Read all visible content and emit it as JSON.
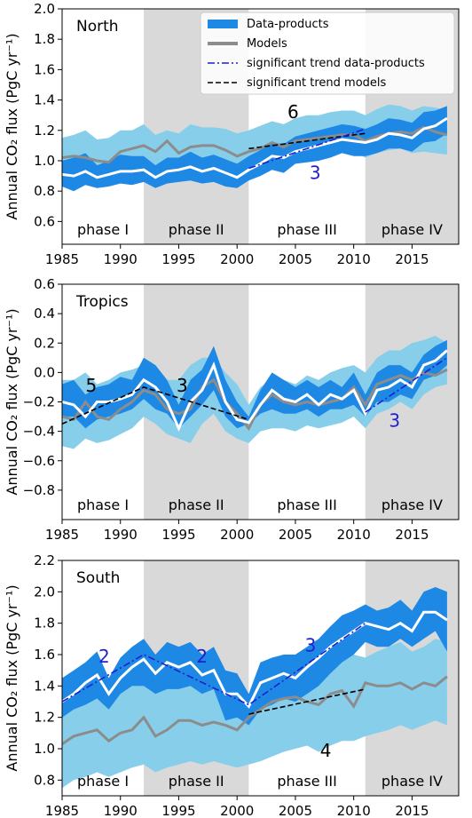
{
  "legend": {
    "items": [
      {
        "label": "Data-products",
        "kind": "band"
      },
      {
        "label": "Models",
        "kind": "grey"
      },
      {
        "label": "significant trend data-products",
        "kind": "dashdot"
      },
      {
        "label": "significant trend models",
        "kind": "dashed"
      }
    ]
  },
  "colors": {
    "band_dark": "#1e88e5",
    "band_light": "#87ceeb",
    "median": "#ffffff",
    "models": "#8c8c8c",
    "trend_data": "#1f1fd0",
    "trend_models": "#000000",
    "phase_shade": "#d9d9d9",
    "annot_blue": "#1f1fd0"
  },
  "chart_data": [
    {
      "type": "line",
      "title": "North",
      "ylabel": "Annual CO₂ flux (PgC yr⁻¹)",
      "xlim": [
        1985,
        2019
      ],
      "ylim": [
        0.45,
        2.0
      ],
      "xticks": [
        1985,
        1990,
        1995,
        2000,
        2005,
        2010,
        2015
      ],
      "yticks": [
        0.6,
        0.8,
        1.0,
        1.2,
        1.4,
        1.6,
        1.8,
        2.0
      ],
      "ytick_labels": [
        "0.6",
        "0.8",
        "1.0",
        "1.2",
        "1.4",
        "1.6",
        "1.8",
        "2.0"
      ],
      "phases": [
        {
          "label": "phase I",
          "start": 1985,
          "end": 1992,
          "shaded": false
        },
        {
          "label": "phase II",
          "start": 1992,
          "end": 2001,
          "shaded": true
        },
        {
          "label": "phase III",
          "start": 2001,
          "end": 2011,
          "shaded": false
        },
        {
          "label": "phase IV",
          "start": 2011,
          "end": 2019,
          "shaded": true
        }
      ],
      "x": [
        1985,
        1986,
        1987,
        1988,
        1989,
        1990,
        1991,
        1992,
        1993,
        1994,
        1995,
        1996,
        1997,
        1998,
        1999,
        2000,
        2001,
        2002,
        2003,
        2004,
        2005,
        2006,
        2007,
        2008,
        2009,
        2010,
        2011,
        2012,
        2013,
        2014,
        2015,
        2016,
        2017,
        2018
      ],
      "models_lower": [
        0.88,
        0.9,
        0.92,
        0.88,
        0.9,
        0.92,
        0.94,
        0.95,
        0.9,
        0.93,
        0.92,
        0.96,
        0.95,
        0.95,
        0.93,
        0.9,
        0.96,
        0.98,
        1.0,
        0.97,
        1.02,
        1.04,
        1.03,
        1.05,
        1.06,
        1.06,
        1.02,
        1.05,
        1.07,
        1.08,
        1.05,
        1.06,
        1.05,
        1.04
      ],
      "models_upper": [
        1.15,
        1.17,
        1.2,
        1.14,
        1.15,
        1.2,
        1.2,
        1.24,
        1.17,
        1.2,
        1.18,
        1.24,
        1.22,
        1.22,
        1.21,
        1.18,
        1.2,
        1.23,
        1.26,
        1.24,
        1.28,
        1.3,
        1.3,
        1.32,
        1.33,
        1.33,
        1.3,
        1.34,
        1.37,
        1.36,
        1.33,
        1.36,
        1.35,
        1.33
      ],
      "data_lower": [
        0.83,
        0.8,
        0.84,
        0.82,
        0.83,
        0.85,
        0.84,
        0.86,
        0.82,
        0.85,
        0.86,
        0.87,
        0.85,
        0.86,
        0.83,
        0.82,
        0.87,
        0.9,
        0.94,
        0.92,
        0.98,
        0.99,
        1.0,
        1.02,
        1.05,
        1.03,
        1.03,
        1.05,
        1.08,
        1.08,
        1.06,
        1.12,
        1.13,
        1.18
      ],
      "data_upper": [
        1.0,
        1.02,
        1.05,
        0.97,
        1.0,
        1.04,
        1.03,
        1.03,
        0.97,
        1.02,
        1.02,
        1.06,
        1.02,
        1.04,
        1.01,
        0.98,
        1.03,
        1.07,
        1.12,
        1.11,
        1.16,
        1.18,
        1.2,
        1.22,
        1.24,
        1.23,
        1.21,
        1.24,
        1.28,
        1.27,
        1.25,
        1.32,
        1.33,
        1.36
      ],
      "data_median": [
        0.91,
        0.9,
        0.93,
        0.89,
        0.91,
        0.93,
        0.93,
        0.94,
        0.89,
        0.93,
        0.94,
        0.96,
        0.93,
        0.95,
        0.92,
        0.89,
        0.94,
        0.98,
        1.03,
        1.02,
        1.06,
        1.08,
        1.1,
        1.12,
        1.14,
        1.13,
        1.12,
        1.14,
        1.18,
        1.17,
        1.15,
        1.21,
        1.23,
        1.28
      ],
      "models": [
        1.02,
        1.03,
        1.02,
        1.0,
        0.99,
        1.06,
        1.08,
        1.1,
        1.06,
        1.13,
        1.05,
        1.09,
        1.1,
        1.1,
        1.07,
        1.03,
        1.06,
        1.08,
        1.12,
        1.09,
        1.13,
        1.14,
        1.15,
        1.16,
        1.17,
        1.17,
        1.13,
        1.16,
        1.18,
        1.19,
        1.18,
        1.22,
        1.19,
        1.17
      ],
      "trend_data": {
        "x": [
          2001,
          2011
        ],
        "y": [
          0.95,
          1.21
        ]
      },
      "trend_models": {
        "x": [
          2001,
          2011
        ],
        "y": [
          1.08,
          1.18
        ]
      },
      "annotations": [
        {
          "text": "6",
          "x": 2004.8,
          "y": 1.28,
          "color": "black"
        },
        {
          "text": "3",
          "x": 2006.7,
          "y": 0.88,
          "color": "blue"
        }
      ],
      "legend_position": "top-right"
    },
    {
      "type": "line",
      "title": "Tropics",
      "ylabel": "Annual CO₂ flux (PgC yr⁻¹)",
      "xlim": [
        1985,
        2019
      ],
      "ylim": [
        -1.0,
        0.6
      ],
      "xticks": [
        1985,
        1990,
        1995,
        2000,
        2005,
        2010,
        2015
      ],
      "yticks": [
        -0.8,
        -0.6,
        -0.4,
        -0.2,
        0.0,
        0.2,
        0.4,
        0.6
      ],
      "ytick_labels": [
        "−0.8",
        "−0.6",
        "−0.4",
        "−0.2",
        "0.0",
        "0.2",
        "0.4",
        "0.6"
      ],
      "phases": [
        {
          "label": "phase I",
          "start": 1985,
          "end": 1992,
          "shaded": false
        },
        {
          "label": "phase II",
          "start": 1992,
          "end": 2001,
          "shaded": true
        },
        {
          "label": "phase III",
          "start": 2001,
          "end": 2011,
          "shaded": false
        },
        {
          "label": "phase IV",
          "start": 2011,
          "end": 2019,
          "shaded": true
        }
      ],
      "x": [
        1985,
        1986,
        1987,
        1988,
        1989,
        1990,
        1991,
        1992,
        1993,
        1994,
        1995,
        1996,
        1997,
        1998,
        1999,
        2000,
        2001,
        2002,
        2003,
        2004,
        2005,
        2006,
        2007,
        2008,
        2009,
        2010,
        2011,
        2012,
        2013,
        2014,
        2015,
        2016,
        2017,
        2018
      ],
      "models_lower": [
        -0.5,
        -0.52,
        -0.45,
        -0.48,
        -0.46,
        -0.42,
        -0.38,
        -0.3,
        -0.35,
        -0.42,
        -0.45,
        -0.48,
        -0.35,
        -0.28,
        -0.4,
        -0.45,
        -0.48,
        -0.4,
        -0.38,
        -0.38,
        -0.4,
        -0.36,
        -0.38,
        -0.36,
        -0.34,
        -0.3,
        -0.38,
        -0.28,
        -0.25,
        -0.2,
        -0.25,
        -0.15,
        -0.1,
        -0.08
      ],
      "models_upper": [
        -0.05,
        -0.05,
        0.0,
        -0.08,
        -0.05,
        0.0,
        0.02,
        0.05,
        0.05,
        -0.05,
        -0.05,
        0.05,
        0.1,
        0.1,
        0.0,
        -0.08,
        -0.22,
        -0.1,
        -0.05,
        -0.05,
        -0.08,
        -0.02,
        -0.05,
        0.0,
        0.03,
        0.05,
        0.0,
        0.1,
        0.15,
        0.15,
        0.2,
        0.22,
        0.25,
        0.2
      ],
      "data_lower": [
        -0.3,
        -0.3,
        -0.38,
        -0.32,
        -0.3,
        -0.28,
        -0.25,
        -0.18,
        -0.25,
        -0.28,
        -0.38,
        -0.3,
        -0.22,
        -0.12,
        -0.3,
        -0.38,
        -0.35,
        -0.28,
        -0.25,
        -0.28,
        -0.28,
        -0.25,
        -0.3,
        -0.25,
        -0.25,
        -0.22,
        -0.3,
        -0.2,
        -0.2,
        -0.15,
        -0.18,
        -0.05,
        -0.02,
        0.05
      ],
      "data_upper": [
        -0.08,
        -0.05,
        -0.15,
        -0.1,
        -0.08,
        -0.03,
        -0.05,
        0.1,
        0.05,
        -0.05,
        -0.22,
        -0.05,
        0.02,
        0.18,
        -0.05,
        -0.2,
        -0.3,
        -0.12,
        0.0,
        -0.05,
        -0.1,
        -0.05,
        -0.1,
        -0.05,
        -0.1,
        0.0,
        -0.15,
        0.0,
        0.05,
        0.05,
        0.0,
        0.12,
        0.18,
        0.22
      ],
      "data_median": [
        -0.2,
        -0.22,
        -0.3,
        -0.2,
        -0.2,
        -0.18,
        -0.15,
        -0.05,
        -0.1,
        -0.2,
        -0.38,
        -0.2,
        -0.12,
        0.05,
        -0.2,
        -0.32,
        -0.34,
        -0.22,
        -0.12,
        -0.18,
        -0.2,
        -0.15,
        -0.22,
        -0.15,
        -0.18,
        -0.12,
        -0.28,
        -0.12,
        -0.1,
        -0.05,
        -0.1,
        0.05,
        0.08,
        0.15
      ],
      "models": [
        -0.3,
        -0.32,
        -0.2,
        -0.3,
        -0.32,
        -0.25,
        -0.2,
        -0.12,
        -0.15,
        -0.25,
        -0.28,
        -0.25,
        -0.1,
        -0.05,
        -0.2,
        -0.28,
        -0.38,
        -0.22,
        -0.15,
        -0.2,
        -0.22,
        -0.2,
        -0.22,
        -0.2,
        -0.18,
        -0.1,
        -0.22,
        -0.08,
        -0.05,
        -0.02,
        -0.05,
        0.0,
        -0.02,
        0.02
      ],
      "trend_data": {
        "x": [
          2011,
          2018
        ],
        "y": [
          -0.27,
          0.1
        ]
      },
      "trend_models": {
        "x": [
          1985,
          1992,
          2001
        ],
        "y": [
          -0.35,
          -0.1,
          -0.32
        ]
      },
      "annotations": [
        {
          "text": "5",
          "x": 1987.5,
          "y": -0.13,
          "color": "black"
        },
        {
          "text": "3",
          "x": 1995.3,
          "y": -0.13,
          "color": "black"
        },
        {
          "text": "3",
          "x": 2013.5,
          "y": -0.37,
          "color": "blue"
        }
      ]
    },
    {
      "type": "line",
      "title": "South",
      "ylabel": "Annual CO₂ flux (PgC yr⁻¹)",
      "xlim": [
        1985,
        2019
      ],
      "ylim": [
        0.7,
        2.2
      ],
      "xticks": [
        1985,
        1990,
        1995,
        2000,
        2005,
        2010,
        2015
      ],
      "yticks": [
        0.8,
        1.0,
        1.2,
        1.4,
        1.6,
        1.8,
        2.0,
        2.2
      ],
      "ytick_labels": [
        "0.8",
        "1.0",
        "1.2",
        "1.4",
        "1.6",
        "1.8",
        "2.0",
        "2.2"
      ],
      "phases": [
        {
          "label": "phase I",
          "start": 1985,
          "end": 1992,
          "shaded": false
        },
        {
          "label": "phase II",
          "start": 1992,
          "end": 2001,
          "shaded": true
        },
        {
          "label": "phase III",
          "start": 2001,
          "end": 2011,
          "shaded": false
        },
        {
          "label": "phase IV",
          "start": 2011,
          "end": 2019,
          "shaded": true
        }
      ],
      "x": [
        1985,
        1986,
        1987,
        1988,
        1989,
        1990,
        1991,
        1992,
        1993,
        1994,
        1995,
        1996,
        1997,
        1998,
        1999,
        2000,
        2001,
        2002,
        2003,
        2004,
        2005,
        2006,
        2007,
        2008,
        2009,
        2010,
        2011,
        2012,
        2013,
        2014,
        2015,
        2016,
        2017,
        2018
      ],
      "models_lower": [
        0.75,
        0.8,
        0.82,
        0.85,
        0.82,
        0.85,
        0.88,
        0.9,
        0.85,
        0.88,
        0.9,
        0.92,
        0.9,
        0.92,
        0.9,
        0.88,
        0.9,
        0.92,
        0.95,
        0.98,
        1.0,
        1.02,
        0.98,
        1.02,
        1.05,
        1.05,
        1.08,
        1.1,
        1.12,
        1.15,
        1.12,
        1.15,
        1.18,
        1.15
      ],
      "models_upper": [
        1.3,
        1.32,
        1.35,
        1.38,
        1.35,
        1.38,
        1.4,
        1.45,
        1.38,
        1.42,
        1.45,
        1.46,
        1.42,
        1.45,
        1.42,
        1.38,
        1.3,
        1.45,
        1.52,
        1.48,
        1.5,
        1.52,
        1.48,
        1.55,
        1.58,
        1.6,
        1.58,
        1.62,
        1.65,
        1.68,
        1.62,
        1.65,
        1.7,
        1.68
      ],
      "data_lower": [
        1.2,
        1.25,
        1.28,
        1.32,
        1.25,
        1.35,
        1.4,
        1.4,
        1.35,
        1.38,
        1.38,
        1.4,
        1.35,
        1.38,
        1.18,
        1.2,
        1.15,
        1.25,
        1.28,
        1.32,
        1.3,
        1.35,
        1.4,
        1.48,
        1.55,
        1.6,
        1.68,
        1.65,
        1.65,
        1.7,
        1.65,
        1.7,
        1.75,
        1.62
      ],
      "data_upper": [
        1.45,
        1.5,
        1.55,
        1.62,
        1.45,
        1.58,
        1.65,
        1.7,
        1.6,
        1.68,
        1.65,
        1.68,
        1.6,
        1.65,
        1.5,
        1.48,
        1.35,
        1.55,
        1.58,
        1.6,
        1.6,
        1.65,
        1.7,
        1.78,
        1.85,
        1.88,
        1.92,
        1.88,
        1.9,
        1.95,
        1.88,
        2.0,
        2.03,
        2.0
      ],
      "data_median": [
        1.3,
        1.35,
        1.42,
        1.47,
        1.35,
        1.45,
        1.52,
        1.57,
        1.48,
        1.55,
        1.52,
        1.55,
        1.47,
        1.5,
        1.35,
        1.35,
        1.27,
        1.42,
        1.45,
        1.48,
        1.45,
        1.52,
        1.58,
        1.65,
        1.7,
        1.75,
        1.8,
        1.78,
        1.76,
        1.8,
        1.75,
        1.87,
        1.87,
        1.82
      ],
      "models": [
        1.03,
        1.08,
        1.1,
        1.12,
        1.05,
        1.1,
        1.12,
        1.2,
        1.08,
        1.12,
        1.18,
        1.18,
        1.15,
        1.17,
        1.15,
        1.12,
        1.2,
        1.25,
        1.3,
        1.32,
        1.33,
        1.3,
        1.28,
        1.35,
        1.37,
        1.27,
        1.42,
        1.4,
        1.4,
        1.42,
        1.38,
        1.42,
        1.4,
        1.46
      ],
      "trend_data": {
        "x": [
          1985,
          1992,
          2001,
          2011
        ],
        "y": [
          1.3,
          1.6,
          1.28,
          1.8
        ]
      },
      "trend_models": {
        "x": [
          2001,
          2011
        ],
        "y": [
          1.22,
          1.38
        ]
      },
      "annotations": [
        {
          "text": "2",
          "x": 1988.6,
          "y": 1.55,
          "color": "blue"
        },
        {
          "text": "2",
          "x": 1997.0,
          "y": 1.55,
          "color": "blue"
        },
        {
          "text": "3",
          "x": 2006.3,
          "y": 1.62,
          "color": "blue"
        },
        {
          "text": "4",
          "x": 2007.6,
          "y": 0.95,
          "color": "black"
        }
      ]
    }
  ]
}
